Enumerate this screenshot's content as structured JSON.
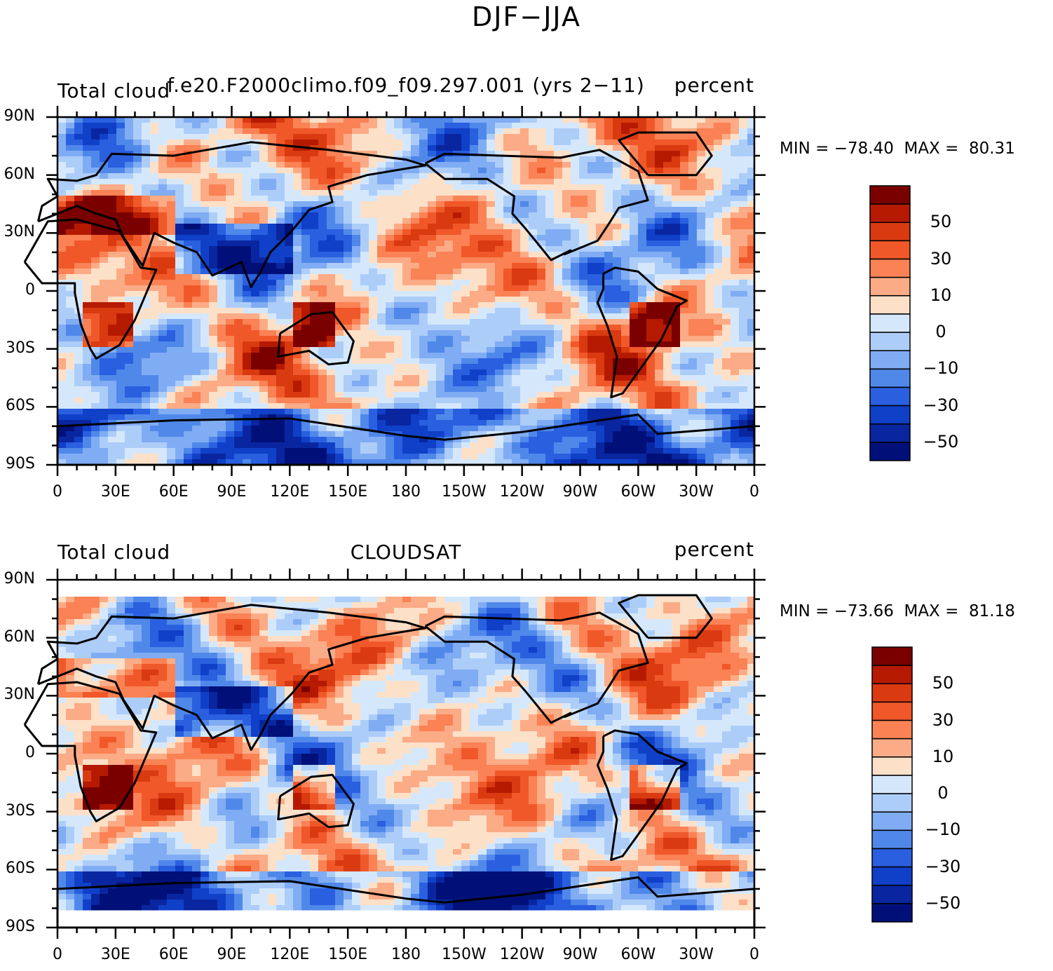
{
  "title": "DJF−JJA",
  "panels": [
    {
      "left_text": "Total cloud",
      "center_text": "f.e20.F2000climo.f09_f09.297.001 (yrs 2−11)",
      "right_text": "percent",
      "min_label": "MIN = −78.40",
      "max_label": "MAX =  80.31"
    },
    {
      "left_text": "Total cloud",
      "center_text": "CLOUDSAT",
      "right_text": "percent",
      "min_label": "MIN = −73.66",
      "max_label": "MAX =  81.18"
    }
  ],
  "lat_ticks": [
    "90N",
    "60N",
    "30N",
    "0",
    "30S",
    "60S",
    "90S"
  ],
  "lon_ticks": [
    "0",
    "30E",
    "60E",
    "90E",
    "120E",
    "150E",
    "180",
    "150W",
    "120W",
    "90W",
    "60W",
    "30W",
    "0"
  ],
  "legend": {
    "labels": [
      "50",
      "30",
      "10",
      "0",
      "−10",
      "−30",
      "−50"
    ],
    "colors": [
      "#7a0000",
      "#b51a00",
      "#d93a10",
      "#f0582a",
      "#fa8255",
      "#fbab86",
      "#fde0c8",
      "#d5e8fb",
      "#adcdf9",
      "#80acf3",
      "#5088ea",
      "#2a5fe0",
      "#1040c8",
      "#0926a0",
      "#001078"
    ]
  }
}
